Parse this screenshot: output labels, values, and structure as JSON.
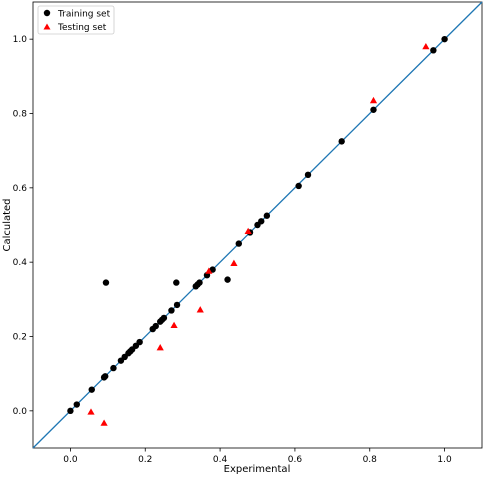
{
  "chart_data": {
    "type": "scatter",
    "xlabel": "Experimental",
    "ylabel": "Calculated",
    "xlim": [
      -0.1,
      1.1
    ],
    "ylim": [
      -0.1,
      1.1
    ],
    "x_ticks": [
      0.0,
      0.2,
      0.4,
      0.6,
      0.8,
      1.0
    ],
    "y_ticks": [
      0.0,
      0.2,
      0.4,
      0.6,
      0.8,
      1.0
    ],
    "x_tick_labels": [
      "0.0",
      "0.2",
      "0.4",
      "0.6",
      "0.8",
      "1.0"
    ],
    "y_tick_labels": [
      "0.0",
      "0.2",
      "0.4",
      "0.6",
      "0.8",
      "1.0"
    ],
    "grid": false,
    "legend_position": "top-left",
    "reference_line": {
      "slope": 1,
      "intercept": 0,
      "color": "#1f77b4"
    },
    "series": [
      {
        "name": "Training set",
        "marker": "circle",
        "color": "#000000",
        "points": [
          [
            0.0,
            0.0
          ],
          [
            0.017,
            0.017
          ],
          [
            0.057,
            0.057
          ],
          [
            0.09,
            0.09
          ],
          [
            0.093,
            0.093
          ],
          [
            0.095,
            0.345
          ],
          [
            0.115,
            0.115
          ],
          [
            0.135,
            0.135
          ],
          [
            0.145,
            0.145
          ],
          [
            0.155,
            0.155
          ],
          [
            0.16,
            0.16
          ],
          [
            0.165,
            0.165
          ],
          [
            0.175,
            0.175
          ],
          [
            0.185,
            0.185
          ],
          [
            0.22,
            0.22
          ],
          [
            0.228,
            0.228
          ],
          [
            0.24,
            0.24
          ],
          [
            0.245,
            0.245
          ],
          [
            0.25,
            0.25
          ],
          [
            0.27,
            0.27
          ],
          [
            0.283,
            0.345
          ],
          [
            0.285,
            0.285
          ],
          [
            0.335,
            0.335
          ],
          [
            0.34,
            0.34
          ],
          [
            0.345,
            0.345
          ],
          [
            0.365,
            0.365
          ],
          [
            0.38,
            0.38
          ],
          [
            0.42,
            0.353
          ],
          [
            0.45,
            0.45
          ],
          [
            0.48,
            0.48
          ],
          [
            0.5,
            0.5
          ],
          [
            0.51,
            0.51
          ],
          [
            0.525,
            0.525
          ],
          [
            0.61,
            0.605
          ],
          [
            0.635,
            0.635
          ],
          [
            0.725,
            0.725
          ],
          [
            0.81,
            0.81
          ],
          [
            0.97,
            0.97
          ],
          [
            1.0,
            1.0
          ]
        ]
      },
      {
        "name": "Testing set",
        "marker": "triangle",
        "color": "#ff0000",
        "points": [
          [
            0.055,
            -0.003
          ],
          [
            0.09,
            -0.033
          ],
          [
            0.24,
            0.17
          ],
          [
            0.277,
            0.23
          ],
          [
            0.347,
            0.272
          ],
          [
            0.37,
            0.376
          ],
          [
            0.437,
            0.397
          ],
          [
            0.475,
            0.483
          ],
          [
            0.81,
            0.835
          ],
          [
            0.95,
            0.98
          ]
        ]
      }
    ]
  }
}
